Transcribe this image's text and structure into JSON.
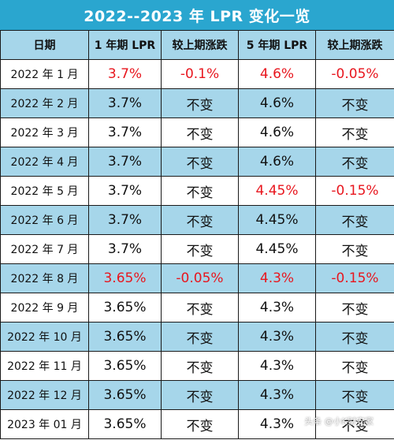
{
  "title": "2022--2023 年 LPR 变化一览",
  "columns": [
    "日期",
    "1 年期 LPR",
    "较上期涨跌",
    "5 年期 LPR",
    "较上期涨跌"
  ],
  "colors": {
    "title_bg": "#2aa6cf",
    "row_alt_bg": "#a6d6ea",
    "changed_text": "#e8161e"
  },
  "rows": [
    {
      "date": "2022 年 1 月",
      "lpr1y": "3.7%",
      "chg1y": "-0.1%",
      "lpr5y": "4.6%",
      "chg5y": "-0.05%",
      "changed1y": true,
      "changed5y": true
    },
    {
      "date": "2022 年 2 月",
      "lpr1y": "3.7%",
      "chg1y": "不变",
      "lpr5y": "4.6%",
      "chg5y": "不变",
      "changed1y": false,
      "changed5y": false
    },
    {
      "date": "2022 年 3 月",
      "lpr1y": "3.7%",
      "chg1y": "不变",
      "lpr5y": "4.6%",
      "chg5y": "不变",
      "changed1y": false,
      "changed5y": false
    },
    {
      "date": "2022 年 4 月",
      "lpr1y": "3.7%",
      "chg1y": "不变",
      "lpr5y": "4.6%",
      "chg5y": "不变",
      "changed1y": false,
      "changed5y": false
    },
    {
      "date": "2022 年 5 月",
      "lpr1y": "3.7%",
      "chg1y": "不变",
      "lpr5y": "4.45%",
      "chg5y": "-0.15%",
      "changed1y": false,
      "changed5y": true
    },
    {
      "date": "2022 年 6 月",
      "lpr1y": "3.7%",
      "chg1y": "不变",
      "lpr5y": "4.45%",
      "chg5y": "不变",
      "changed1y": false,
      "changed5y": false
    },
    {
      "date": "2022 年 7 月",
      "lpr1y": "3.7%",
      "chg1y": "不变",
      "lpr5y": "4.45%",
      "chg5y": "不变",
      "changed1y": false,
      "changed5y": false
    },
    {
      "date": "2022 年 8 月",
      "lpr1y": "3.65%",
      "chg1y": "-0.05%",
      "lpr5y": "4.3%",
      "chg5y": "-0.15%",
      "changed1y": true,
      "changed5y": true
    },
    {
      "date": "2022 年 9 月",
      "lpr1y": "3.65%",
      "chg1y": "不变",
      "lpr5y": "4.3%",
      "chg5y": "不变",
      "changed1y": false,
      "changed5y": false
    },
    {
      "date": "2022 年 10 月",
      "lpr1y": "3.65%",
      "chg1y": "不变",
      "lpr5y": "4.3%",
      "chg5y": "不变",
      "changed1y": false,
      "changed5y": false
    },
    {
      "date": "2022 年 11 月",
      "lpr1y": "3.65%",
      "chg1y": "不变",
      "lpr5y": "4.3%",
      "chg5y": "不变",
      "changed1y": false,
      "changed5y": false
    },
    {
      "date": "2022 年 12 月",
      "lpr1y": "3.65%",
      "chg1y": "不变",
      "lpr5y": "4.3%",
      "chg5y": "不变",
      "changed1y": false,
      "changed5y": false
    },
    {
      "date": "2023 年 01 月",
      "lpr1y": "3.65%",
      "chg1y": "不变",
      "lpr5y": "4.3%",
      "chg5y": "不变",
      "changed1y": false,
      "changed5y": false
    }
  ],
  "watermark": "头条 @小K财安家"
}
